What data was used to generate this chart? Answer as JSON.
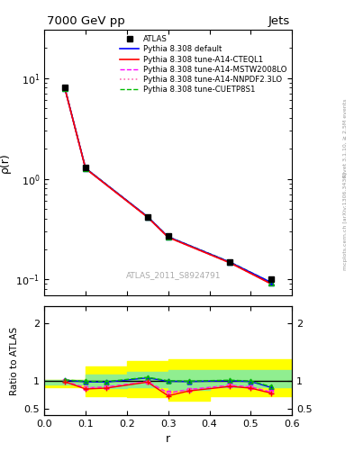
{
  "title_left": "7000 GeV pp",
  "title_right": "Jets",
  "ylabel_main": "ρ(r)",
  "ylabel_ratio": "Ratio to ATLAS",
  "xlabel": "r",
  "right_label_top": "Rivet 3.1.10, ≥ 2.5M events",
  "right_label_bot": "mcplots.cern.ch [arXiv:1306.3436]",
  "watermark": "ATLAS_2011_S8924791",
  "atlas_x": [
    0.05,
    0.1,
    0.25,
    0.3,
    0.45,
    0.55
  ],
  "atlas_y": [
    8.0,
    1.3,
    0.42,
    0.27,
    0.15,
    0.1
  ],
  "model_x": [
    0.05,
    0.1,
    0.25,
    0.3,
    0.45,
    0.55
  ],
  "default_y": [
    7.9,
    1.27,
    0.42,
    0.265,
    0.148,
    0.093
  ],
  "cteql1_y": [
    7.85,
    1.26,
    0.415,
    0.262,
    0.146,
    0.09
  ],
  "mstw_y": [
    7.87,
    1.265,
    0.417,
    0.263,
    0.147,
    0.091
  ],
  "nnpdf_y": [
    7.86,
    1.263,
    0.416,
    0.262,
    0.146,
    0.09
  ],
  "cuetp8s1_y": [
    7.92,
    1.275,
    0.421,
    0.266,
    0.149,
    0.093
  ],
  "ratio_x": [
    0.05,
    0.1,
    0.15,
    0.25,
    0.3,
    0.35,
    0.45,
    0.5,
    0.55
  ],
  "ratio_default": [
    1.01,
    0.98,
    0.975,
    1.05,
    0.99,
    0.985,
    1.0,
    0.985,
    0.88
  ],
  "ratio_cteql1": [
    0.98,
    0.855,
    0.87,
    0.975,
    0.735,
    0.82,
    0.9,
    0.87,
    0.78
  ],
  "ratio_mstw": [
    0.99,
    0.875,
    0.89,
    0.985,
    0.785,
    0.845,
    0.92,
    0.89,
    0.8
  ],
  "ratio_nnpdf": [
    0.985,
    0.87,
    0.885,
    0.98,
    0.77,
    0.838,
    0.915,
    0.885,
    0.795
  ],
  "ratio_cuetp8s1": [
    1.015,
    0.99,
    0.985,
    1.06,
    1.0,
    0.993,
    1.01,
    0.995,
    0.895
  ],
  "band_yellow_x": [
    0.0,
    0.1,
    0.2,
    0.3,
    0.4,
    0.5,
    0.6
  ],
  "band_yellow_lo": [
    0.88,
    0.73,
    0.72,
    0.65,
    0.73,
    0.73,
    0.73
  ],
  "band_yellow_hi": [
    1.02,
    1.25,
    1.35,
    1.37,
    1.37,
    1.37,
    1.37
  ],
  "band_green_x": [
    0.0,
    0.1,
    0.2,
    0.3,
    0.4,
    0.5,
    0.6
  ],
  "band_green_lo": [
    0.93,
    0.87,
    0.88,
    0.84,
    0.88,
    0.88,
    0.88
  ],
  "band_green_hi": [
    1.01,
    1.1,
    1.15,
    1.18,
    1.18,
    1.18,
    1.18
  ],
  "color_default": "#0000ff",
  "color_cteql1": "#ff0000",
  "color_mstw": "#ff00ff",
  "color_nnpdf": "#ff69b4",
  "color_cuetp8s1": "#00bb00",
  "color_atlas": "#000000",
  "xlim": [
    0.0,
    0.6
  ],
  "ylim_main": [
    0.07,
    30
  ],
  "ylim_ratio": [
    0.4,
    2.3
  ],
  "ratio_yticks": [
    0.5,
    1.0,
    2.0
  ]
}
